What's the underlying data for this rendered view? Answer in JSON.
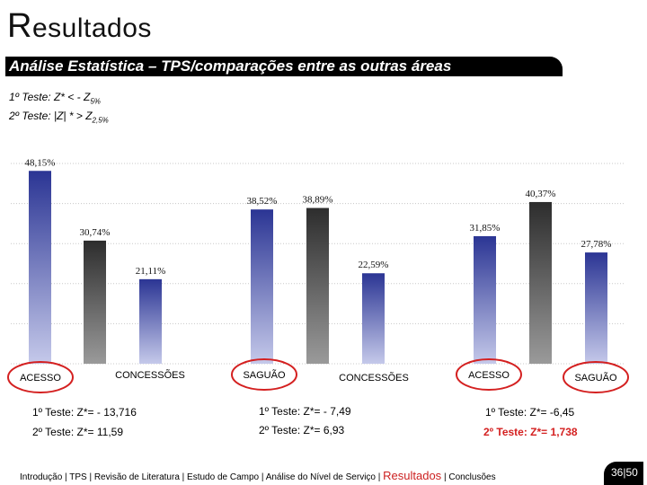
{
  "slide": {
    "title_initial": "R",
    "title_rest": "esultados",
    "subtitle": "Análise Estatística – TPS/comparações entre as outras áreas"
  },
  "tests": {
    "line1_main": "1º Teste: Z* < - Z",
    "line1_sub": "5%",
    "line2_main": "2º Teste: |Z| * > Z",
    "line2_sub": "2,5%"
  },
  "chart_data": {
    "type": "bar",
    "ylim": [
      0,
      50
    ],
    "grid": true,
    "bars": [
      {
        "label": "48,15%",
        "value": 48.15,
        "style": "blue"
      },
      {
        "label": "30,74%",
        "value": 30.74,
        "style": "dark"
      },
      {
        "label": "21,11%",
        "value": 21.11,
        "style": "blue"
      },
      {
        "label": "38,52%",
        "value": 38.52,
        "style": "blue"
      },
      {
        "label": "38,89%",
        "value": 38.89,
        "style": "dark"
      },
      {
        "label": "22,59%",
        "value": 22.59,
        "style": "blue"
      },
      {
        "label": "31,85%",
        "value": 31.85,
        "style": "blue"
      },
      {
        "label": "40,37%",
        "value": 40.37,
        "style": "dark"
      },
      {
        "label": "27,78%",
        "value": 27.78,
        "style": "blue"
      }
    ],
    "categories": [
      {
        "label": "ACESSO",
        "circled": true
      },
      {
        "label": "CONCESSÕES",
        "circled": false
      },
      {
        "label": "SAGUÃO",
        "circled": true
      },
      {
        "label": "CONCESSÕES",
        "circled": false
      },
      {
        "label": "ACESSO",
        "circled": true
      },
      {
        "label": "SAGUÃO",
        "circled": true
      }
    ],
    "colors": {
      "blue": "#2b3594",
      "blue_light": "#c5c9ea",
      "dark": "#2d2d2d",
      "dark_light": "#9a9a9a",
      "circle": "#d42020"
    }
  },
  "results": [
    {
      "line1": "1º Teste: Z*= - 13,716",
      "line2": "2º Teste: Z*= 11,59"
    },
    {
      "line1": "1º Teste: Z*= - 7,49",
      "line2": "2º Teste: Z*= 6,93"
    },
    {
      "line1": "1º Teste: Z*= -6,45",
      "line2": "2º Teste: Z*= 1,738"
    }
  ],
  "footer": {
    "items_before": "Introdução | TPS | Revisão de Literatura | Estudo de Campo | Análise do Nível de Serviço | ",
    "active": "Resultados",
    "items_after": " | Conclusões",
    "page": "36|50"
  }
}
